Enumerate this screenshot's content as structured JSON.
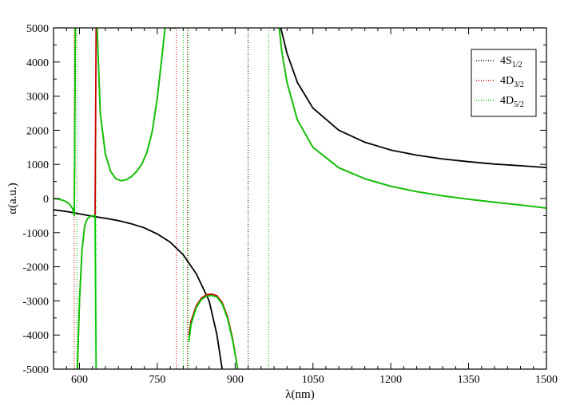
{
  "chart_data": {
    "type": "line",
    "title": "",
    "xlabel": "λ(nm)",
    "ylabel": "α(a.u.)",
    "xlim": [
      550,
      1500
    ],
    "ylim": [
      -5000,
      5000
    ],
    "xticks": [
      600,
      750,
      900,
      1050,
      1200,
      1350,
      1500
    ],
    "yticks": [
      -5000,
      -4000,
      -3000,
      -2000,
      -1000,
      0,
      1000,
      2000,
      3000,
      4000,
      5000
    ],
    "grid": false,
    "legend_position": "top-right",
    "series": [
      {
        "name": "4S",
        "subscript": "1/2",
        "color": "#000000",
        "asymptotes_nm": [
          925
        ],
        "segments": [
          [
            [
              550,
              -330
            ],
            [
              575,
              -380
            ],
            [
              600,
              -450
            ],
            [
              625,
              -520
            ],
            [
              650,
              -580
            ],
            [
              675,
              -650
            ],
            [
              700,
              -740
            ],
            [
              725,
              -860
            ],
            [
              750,
              -1040
            ],
            [
              775,
              -1280
            ],
            [
              800,
              -1650
            ],
            [
              825,
              -2200
            ],
            [
              850,
              -3000
            ],
            [
              865,
              -4000
            ],
            [
              875,
              -5000
            ]
          ],
          [
            [
              988,
              5000
            ],
            [
              1000,
              4250
            ],
            [
              1020,
              3400
            ],
            [
              1050,
              2650
            ],
            [
              1100,
              2000
            ],
            [
              1150,
              1650
            ],
            [
              1200,
              1420
            ],
            [
              1250,
              1270
            ],
            [
              1300,
              1160
            ],
            [
              1350,
              1080
            ],
            [
              1400,
              1010
            ],
            [
              1450,
              960
            ],
            [
              1500,
              910
            ]
          ]
        ]
      },
      {
        "name": "4D",
        "subscript": "3/2",
        "color": "#cc0000",
        "asymptotes_nm": [
          590,
          787,
          808
        ],
        "segments": [
          [
            [
              550,
              0
            ],
            [
              560,
              -20
            ],
            [
              570,
              -60
            ],
            [
              580,
              -150
            ],
            [
              587,
              -300
            ],
            [
              590,
              -500
            ],
            [
              592,
              5000
            ]
          ],
          [
            [
              596,
              -5000
            ],
            [
              598,
              -4000
            ],
            [
              600,
              -3000
            ],
            [
              605,
              -1500
            ],
            [
              610,
              -800
            ],
            [
              615,
              -600
            ],
            [
              620,
              -530
            ],
            [
              625,
              -510
            ],
            [
              630,
              -500
            ],
            [
              632,
              5000
            ]
          ],
          [
            [
              634,
              5000
            ],
            [
              640,
              2500
            ],
            [
              650,
              1300
            ],
            [
              660,
              800
            ],
            [
              670,
              580
            ],
            [
              680,
              520
            ],
            [
              690,
              550
            ],
            [
              700,
              640
            ],
            [
              710,
              790
            ],
            [
              720,
              1000
            ],
            [
              730,
              1350
            ],
            [
              740,
              1950
            ],
            [
              750,
              2950
            ],
            [
              760,
              4300
            ],
            [
              765,
              5000
            ]
          ],
          [
            [
              778,
              5000
            ],
            [
              786,
              5000
            ]
          ],
          [
            [
              811,
              -4000
            ],
            [
              815,
              -3600
            ],
            [
              825,
              -3150
            ],
            [
              835,
              -2920
            ],
            [
              845,
              -2820
            ],
            [
              855,
              -2800
            ],
            [
              865,
              -2850
            ],
            [
              875,
              -3050
            ],
            [
              885,
              -3450
            ],
            [
              895,
              -4100
            ],
            [
              905,
              -5000
            ]
          ],
          [
            [
              985,
              5000
            ],
            [
              990,
              4300
            ],
            [
              1000,
              3400
            ],
            [
              1020,
              2300
            ],
            [
              1050,
              1500
            ],
            [
              1100,
              900
            ],
            [
              1150,
              580
            ],
            [
              1200,
              360
            ],
            [
              1250,
              200
            ],
            [
              1300,
              80
            ],
            [
              1350,
              -20
            ],
            [
              1400,
              -110
            ],
            [
              1450,
              -190
            ],
            [
              1500,
              -280
            ]
          ]
        ]
      },
      {
        "name": "4D",
        "subscript": "5/2",
        "color": "#00cc00",
        "asymptotes_nm": [
          595,
          632,
          800,
          810,
          965
        ],
        "segments": [
          [
            [
              550,
              0
            ],
            [
              560,
              -20
            ],
            [
              570,
              -60
            ],
            [
              580,
              -150
            ],
            [
              587,
              -300
            ],
            [
              590,
              -500
            ],
            [
              592,
              5000
            ]
          ],
          [
            [
              596,
              -5000
            ],
            [
              598,
              -4000
            ],
            [
              600,
              -3000
            ],
            [
              605,
              -1500
            ],
            [
              610,
              -800
            ],
            [
              615,
              -600
            ],
            [
              620,
              -530
            ],
            [
              625,
              -510
            ],
            [
              630,
              -500
            ],
            [
              632,
              -5000
            ]
          ],
          [
            [
              634,
              5000
            ],
            [
              640,
              2500
            ],
            [
              650,
              1300
            ],
            [
              660,
              800
            ],
            [
              670,
              580
            ],
            [
              680,
              520
            ],
            [
              690,
              550
            ],
            [
              700,
              640
            ],
            [
              710,
              790
            ],
            [
              720,
              1000
            ],
            [
              730,
              1350
            ],
            [
              740,
              1950
            ],
            [
              750,
              2950
            ],
            [
              760,
              4300
            ],
            [
              765,
              5000
            ]
          ],
          [
            [
              778,
              5000
            ],
            [
              786,
              5000
            ]
          ],
          [
            [
              811,
              -4200
            ],
            [
              815,
              -3700
            ],
            [
              825,
              -3200
            ],
            [
              835,
              -2960
            ],
            [
              845,
              -2860
            ],
            [
              855,
              -2840
            ],
            [
              865,
              -2890
            ],
            [
              875,
              -3090
            ],
            [
              885,
              -3500
            ],
            [
              895,
              -4150
            ],
            [
              905,
              -5000
            ]
          ],
          [
            [
              985,
              5000
            ],
            [
              990,
              4300
            ],
            [
              1000,
              3400
            ],
            [
              1020,
              2300
            ],
            [
              1050,
              1500
            ],
            [
              1100,
              900
            ],
            [
              1150,
              580
            ],
            [
              1200,
              360
            ],
            [
              1250,
              200
            ],
            [
              1300,
              80
            ],
            [
              1350,
              -20
            ],
            [
              1400,
              -110
            ],
            [
              1450,
              -190
            ],
            [
              1500,
              -280
            ]
          ]
        ]
      }
    ]
  }
}
